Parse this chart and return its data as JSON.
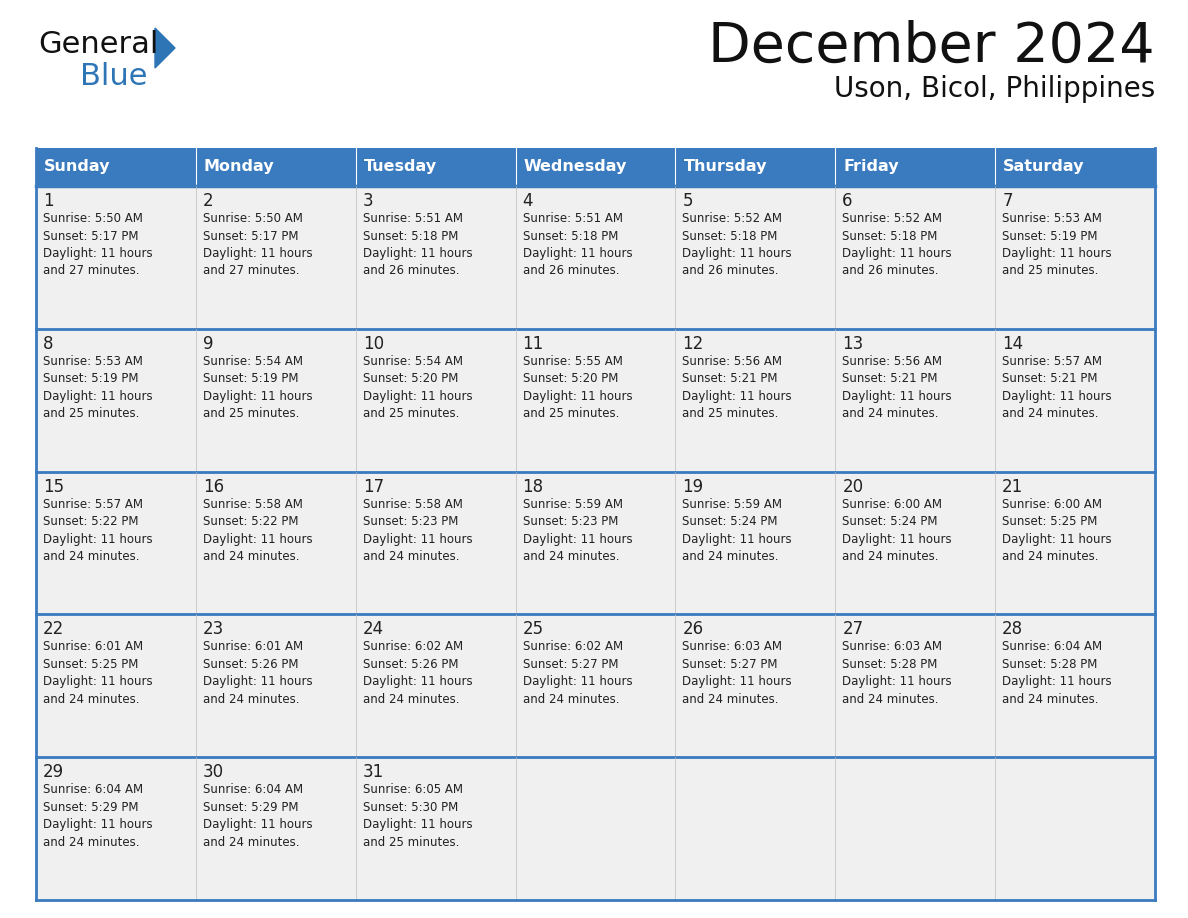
{
  "title": "December 2024",
  "subtitle": "Uson, Bicol, Philippines",
  "header_color": "#3A7ABF",
  "header_text_color": "#FFFFFF",
  "days_of_week": [
    "Sunday",
    "Monday",
    "Tuesday",
    "Wednesday",
    "Thursday",
    "Friday",
    "Saturday"
  ],
  "cell_bg_color": "#F0F0F0",
  "border_color": "#3A7ABF",
  "row_divider_color": "#3A7ABF",
  "day_num_color": "#222222",
  "info_text_color": "#222222",
  "calendar_data": [
    [
      {
        "day": 1,
        "sunrise": "5:50 AM",
        "sunset": "5:17 PM",
        "daylight": "11 hours and 27 minutes."
      },
      {
        "day": 2,
        "sunrise": "5:50 AM",
        "sunset": "5:17 PM",
        "daylight": "11 hours and 27 minutes."
      },
      {
        "day": 3,
        "sunrise": "5:51 AM",
        "sunset": "5:18 PM",
        "daylight": "11 hours and 26 minutes."
      },
      {
        "day": 4,
        "sunrise": "5:51 AM",
        "sunset": "5:18 PM",
        "daylight": "11 hours and 26 minutes."
      },
      {
        "day": 5,
        "sunrise": "5:52 AM",
        "sunset": "5:18 PM",
        "daylight": "11 hours and 26 minutes."
      },
      {
        "day": 6,
        "sunrise": "5:52 AM",
        "sunset": "5:18 PM",
        "daylight": "11 hours and 26 minutes."
      },
      {
        "day": 7,
        "sunrise": "5:53 AM",
        "sunset": "5:19 PM",
        "daylight": "11 hours and 25 minutes."
      }
    ],
    [
      {
        "day": 8,
        "sunrise": "5:53 AM",
        "sunset": "5:19 PM",
        "daylight": "11 hours and 25 minutes."
      },
      {
        "day": 9,
        "sunrise": "5:54 AM",
        "sunset": "5:19 PM",
        "daylight": "11 hours and 25 minutes."
      },
      {
        "day": 10,
        "sunrise": "5:54 AM",
        "sunset": "5:20 PM",
        "daylight": "11 hours and 25 minutes."
      },
      {
        "day": 11,
        "sunrise": "5:55 AM",
        "sunset": "5:20 PM",
        "daylight": "11 hours and 25 minutes."
      },
      {
        "day": 12,
        "sunrise": "5:56 AM",
        "sunset": "5:21 PM",
        "daylight": "11 hours and 25 minutes."
      },
      {
        "day": 13,
        "sunrise": "5:56 AM",
        "sunset": "5:21 PM",
        "daylight": "11 hours and 24 minutes."
      },
      {
        "day": 14,
        "sunrise": "5:57 AM",
        "sunset": "5:21 PM",
        "daylight": "11 hours and 24 minutes."
      }
    ],
    [
      {
        "day": 15,
        "sunrise": "5:57 AM",
        "sunset": "5:22 PM",
        "daylight": "11 hours and 24 minutes."
      },
      {
        "day": 16,
        "sunrise": "5:58 AM",
        "sunset": "5:22 PM",
        "daylight": "11 hours and 24 minutes."
      },
      {
        "day": 17,
        "sunrise": "5:58 AM",
        "sunset": "5:23 PM",
        "daylight": "11 hours and 24 minutes."
      },
      {
        "day": 18,
        "sunrise": "5:59 AM",
        "sunset": "5:23 PM",
        "daylight": "11 hours and 24 minutes."
      },
      {
        "day": 19,
        "sunrise": "5:59 AM",
        "sunset": "5:24 PM",
        "daylight": "11 hours and 24 minutes."
      },
      {
        "day": 20,
        "sunrise": "6:00 AM",
        "sunset": "5:24 PM",
        "daylight": "11 hours and 24 minutes."
      },
      {
        "day": 21,
        "sunrise": "6:00 AM",
        "sunset": "5:25 PM",
        "daylight": "11 hours and 24 minutes."
      }
    ],
    [
      {
        "day": 22,
        "sunrise": "6:01 AM",
        "sunset": "5:25 PM",
        "daylight": "11 hours and 24 minutes."
      },
      {
        "day": 23,
        "sunrise": "6:01 AM",
        "sunset": "5:26 PM",
        "daylight": "11 hours and 24 minutes."
      },
      {
        "day": 24,
        "sunrise": "6:02 AM",
        "sunset": "5:26 PM",
        "daylight": "11 hours and 24 minutes."
      },
      {
        "day": 25,
        "sunrise": "6:02 AM",
        "sunset": "5:27 PM",
        "daylight": "11 hours and 24 minutes."
      },
      {
        "day": 26,
        "sunrise": "6:03 AM",
        "sunset": "5:27 PM",
        "daylight": "11 hours and 24 minutes."
      },
      {
        "day": 27,
        "sunrise": "6:03 AM",
        "sunset": "5:28 PM",
        "daylight": "11 hours and 24 minutes."
      },
      {
        "day": 28,
        "sunrise": "6:04 AM",
        "sunset": "5:28 PM",
        "daylight": "11 hours and 24 minutes."
      }
    ],
    [
      {
        "day": 29,
        "sunrise": "6:04 AM",
        "sunset": "5:29 PM",
        "daylight": "11 hours and 24 minutes."
      },
      {
        "day": 30,
        "sunrise": "6:04 AM",
        "sunset": "5:29 PM",
        "daylight": "11 hours and 24 minutes."
      },
      {
        "day": 31,
        "sunrise": "6:05 AM",
        "sunset": "5:30 PM",
        "daylight": "11 hours and 25 minutes."
      },
      null,
      null,
      null,
      null
    ]
  ]
}
